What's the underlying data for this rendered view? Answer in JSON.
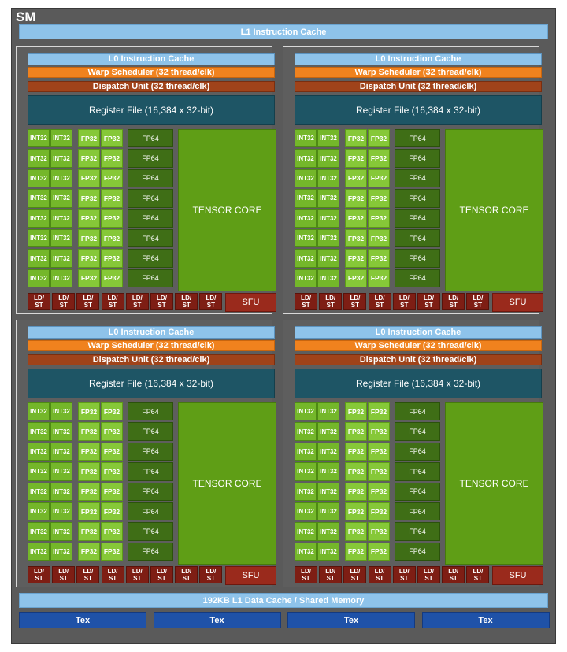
{
  "sm_label": "SM",
  "l1_instruction_cache": "L1 Instruction Cache",
  "l1_data_cache": "192KB L1 Data Cache / Shared Memory",
  "tex_label": "Tex",
  "tex_units": 4,
  "partition": {
    "l0_instruction_cache": "L0 Instruction Cache",
    "warp_scheduler": "Warp Scheduler (32 thread/clk)",
    "dispatch_unit": "Dispatch Unit (32 thread/clk)",
    "register_file": "Register File (16,384 x 32-bit)",
    "int32_label": "INT32",
    "fp32_label": "FP32",
    "fp64_label": "FP64",
    "tensor_core_label": "TENSOR CORE",
    "ldst_label": "LD/\nST",
    "sfu_label": "SFU",
    "unit_rows": 8,
    "ldst_units": 8
  },
  "partition_count": 4,
  "colors": {
    "int32": "#74b72a",
    "fp32": "#86c838",
    "fp64": "#3f6e16",
    "tensor": "#5f9e16",
    "cache": "#8ec3ea",
    "warp_scheduler": "#f0821e",
    "dispatch": "#a0431a",
    "register_file": "#1e5565",
    "ldst": "#7e1e14",
    "tex": "#1f52a8"
  }
}
